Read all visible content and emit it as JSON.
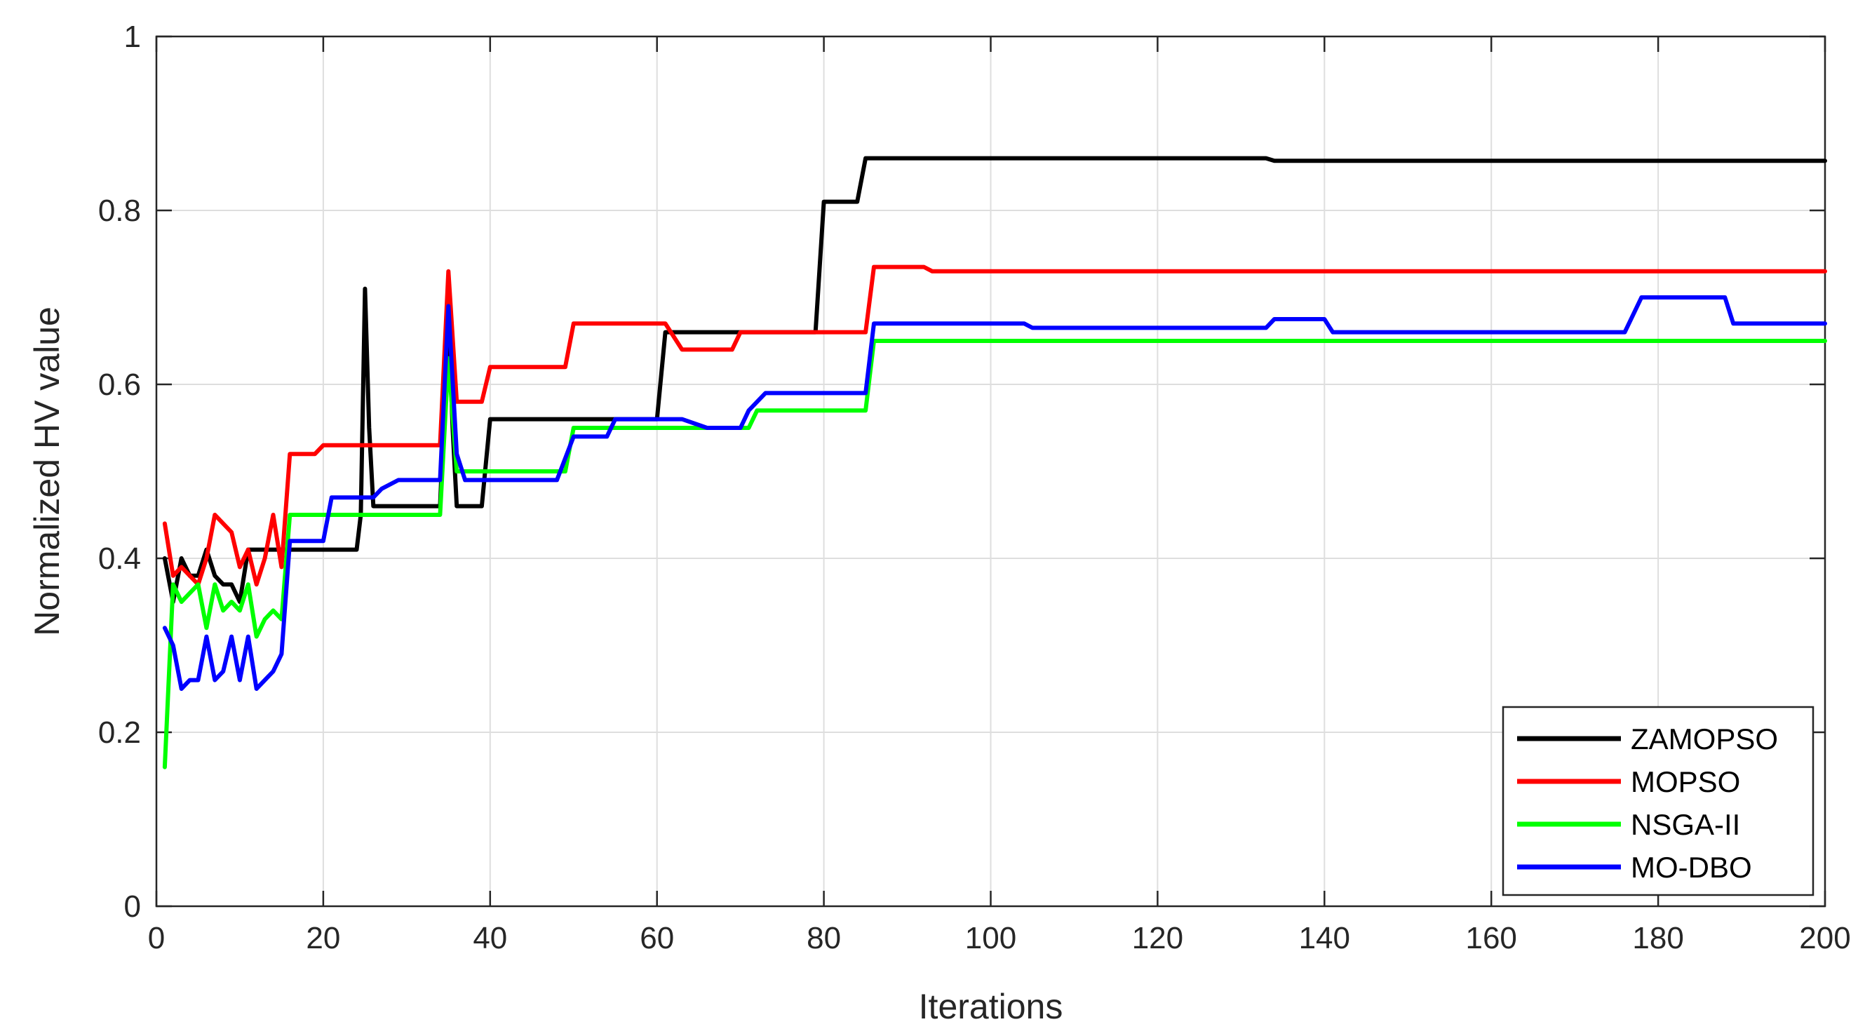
{
  "chart_data": {
    "type": "line",
    "title": "",
    "xlabel": "Iterations",
    "ylabel": "Normalized HV value",
    "xlim": [
      0,
      200
    ],
    "ylim": [
      0,
      1
    ],
    "xticks": [
      0,
      20,
      40,
      60,
      80,
      100,
      120,
      140,
      160,
      180,
      200
    ],
    "xtick_labels": [
      "0",
      "20",
      "40",
      "60",
      "80",
      "100",
      "120",
      "140",
      "160",
      "180",
      "200"
    ],
    "yticks": [
      0,
      0.2,
      0.4,
      0.6,
      0.8,
      1
    ],
    "ytick_labels": [
      "0",
      "0.2",
      "0.4",
      "0.6",
      "0.8",
      "1"
    ],
    "grid": true,
    "legend_position": "bottom-right",
    "series": [
      {
        "name": "ZAMOPSO",
        "color": "#000000",
        "points": [
          [
            1,
            0.4
          ],
          [
            2,
            0.35
          ],
          [
            3,
            0.4
          ],
          [
            4,
            0.38
          ],
          [
            5,
            0.38
          ],
          [
            6,
            0.41
          ],
          [
            7,
            0.38
          ],
          [
            8,
            0.37
          ],
          [
            9,
            0.37
          ],
          [
            10,
            0.35
          ],
          [
            11,
            0.41
          ],
          [
            12,
            0.41
          ],
          [
            16,
            0.41
          ],
          [
            24,
            0.41
          ],
          [
            24.5,
            0.45
          ],
          [
            25,
            0.71
          ],
          [
            25.5,
            0.55
          ],
          [
            26,
            0.46
          ],
          [
            34,
            0.46
          ],
          [
            35,
            0.68
          ],
          [
            35.5,
            0.55
          ],
          [
            36,
            0.46
          ],
          [
            39,
            0.46
          ],
          [
            40,
            0.56
          ],
          [
            60,
            0.56
          ],
          [
            61,
            0.66
          ],
          [
            79,
            0.66
          ],
          [
            80,
            0.81
          ],
          [
            84,
            0.81
          ],
          [
            85,
            0.86
          ],
          [
            133,
            0.86
          ],
          [
            134,
            0.857
          ],
          [
            200,
            0.857
          ]
        ]
      },
      {
        "name": "MOPSO",
        "color": "#ff0000",
        "points": [
          [
            1,
            0.44
          ],
          [
            2,
            0.38
          ],
          [
            3,
            0.39
          ],
          [
            4,
            0.38
          ],
          [
            5,
            0.37
          ],
          [
            6,
            0.4
          ],
          [
            7,
            0.45
          ],
          [
            8,
            0.44
          ],
          [
            9,
            0.43
          ],
          [
            10,
            0.39
          ],
          [
            11,
            0.41
          ],
          [
            12,
            0.37
          ],
          [
            13,
            0.4
          ],
          [
            14,
            0.45
          ],
          [
            15,
            0.39
          ],
          [
            16,
            0.52
          ],
          [
            19,
            0.52
          ],
          [
            20,
            0.53
          ],
          [
            34,
            0.53
          ],
          [
            35,
            0.73
          ],
          [
            36,
            0.58
          ],
          [
            39,
            0.58
          ],
          [
            40,
            0.62
          ],
          [
            49,
            0.62
          ],
          [
            50,
            0.67
          ],
          [
            61,
            0.67
          ],
          [
            63,
            0.64
          ],
          [
            69,
            0.64
          ],
          [
            70,
            0.66
          ],
          [
            85,
            0.66
          ],
          [
            86,
            0.735
          ],
          [
            92,
            0.735
          ],
          [
            93,
            0.73
          ],
          [
            200,
            0.73
          ]
        ]
      },
      {
        "name": "NSGA-II",
        "color": "#00ff00",
        "points": [
          [
            1,
            0.16
          ],
          [
            2,
            0.37
          ],
          [
            3,
            0.35
          ],
          [
            4,
            0.36
          ],
          [
            5,
            0.37
          ],
          [
            6,
            0.32
          ],
          [
            7,
            0.37
          ],
          [
            8,
            0.34
          ],
          [
            9,
            0.35
          ],
          [
            10,
            0.34
          ],
          [
            11,
            0.37
          ],
          [
            12,
            0.31
          ],
          [
            13,
            0.33
          ],
          [
            14,
            0.34
          ],
          [
            15,
            0.33
          ],
          [
            16,
            0.45
          ],
          [
            34,
            0.45
          ],
          [
            35,
            0.63
          ],
          [
            36,
            0.5
          ],
          [
            49,
            0.5
          ],
          [
            50,
            0.55
          ],
          [
            71,
            0.55
          ],
          [
            72,
            0.57
          ],
          [
            85,
            0.57
          ],
          [
            86,
            0.65
          ],
          [
            200,
            0.65
          ]
        ]
      },
      {
        "name": "MO-DBO",
        "color": "#0000ff",
        "points": [
          [
            1,
            0.32
          ],
          [
            2,
            0.3
          ],
          [
            3,
            0.25
          ],
          [
            4,
            0.26
          ],
          [
            5,
            0.26
          ],
          [
            6,
            0.31
          ],
          [
            7,
            0.26
          ],
          [
            8,
            0.27
          ],
          [
            9,
            0.31
          ],
          [
            10,
            0.26
          ],
          [
            11,
            0.31
          ],
          [
            12,
            0.25
          ],
          [
            14,
            0.27
          ],
          [
            15,
            0.29
          ],
          [
            16,
            0.42
          ],
          [
            20,
            0.42
          ],
          [
            21,
            0.47
          ],
          [
            26,
            0.47
          ],
          [
            27,
            0.48
          ],
          [
            29,
            0.49
          ],
          [
            34,
            0.49
          ],
          [
            35,
            0.69
          ],
          [
            36,
            0.52
          ],
          [
            37,
            0.49
          ],
          [
            48,
            0.49
          ],
          [
            50,
            0.54
          ],
          [
            54,
            0.54
          ],
          [
            55,
            0.56
          ],
          [
            63,
            0.56
          ],
          [
            66,
            0.55
          ],
          [
            70,
            0.55
          ],
          [
            71,
            0.57
          ],
          [
            73,
            0.59
          ],
          [
            85,
            0.59
          ],
          [
            86,
            0.67
          ],
          [
            104,
            0.67
          ],
          [
            105,
            0.665
          ],
          [
            133,
            0.665
          ],
          [
            134,
            0.675
          ],
          [
            140,
            0.675
          ],
          [
            141,
            0.66
          ],
          [
            176,
            0.66
          ],
          [
            178,
            0.7
          ],
          [
            188,
            0.7
          ],
          [
            189,
            0.67
          ],
          [
            200,
            0.67
          ]
        ]
      }
    ]
  }
}
